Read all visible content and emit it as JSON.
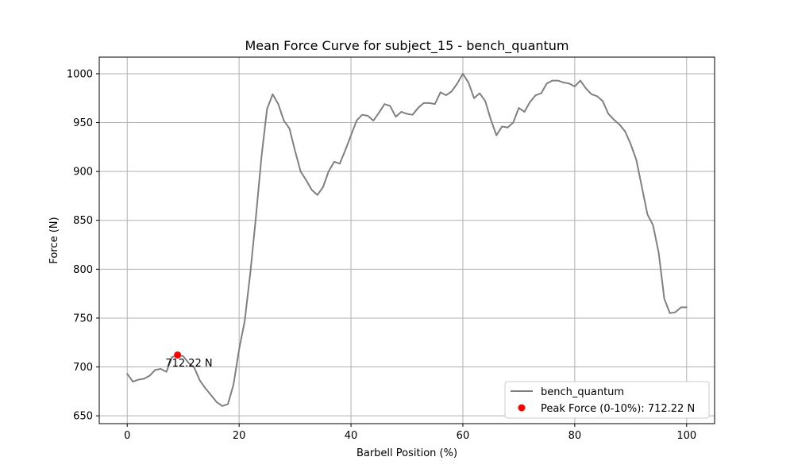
{
  "chart_data": {
    "type": "line",
    "title": "Mean Force Curve for subject_15 - bench_quantum",
    "xlabel": "Barbell Position (%)",
    "ylabel": "Force (N)",
    "xlim": [
      -5,
      105
    ],
    "ylim": [
      642,
      1017
    ],
    "xticks": [
      0,
      20,
      40,
      60,
      80,
      100
    ],
    "yticks": [
      650,
      700,
      750,
      800,
      850,
      900,
      950,
      1000
    ],
    "grid": true,
    "legend_position": "lower right",
    "series": [
      {
        "name": "bench_quantum",
        "color": "#808080",
        "x": [
          0,
          1,
          2,
          3,
          4,
          5,
          6,
          7,
          8,
          9,
          10,
          11,
          12,
          13,
          14,
          15,
          16,
          17,
          18,
          19,
          20,
          21,
          22,
          23,
          24,
          25,
          26,
          27,
          28,
          29,
          30,
          31,
          32,
          33,
          34,
          35,
          36,
          37,
          38,
          39,
          40,
          41,
          42,
          43,
          44,
          45,
          46,
          47,
          48,
          49,
          50,
          51,
          52,
          53,
          54,
          55,
          56,
          57,
          58,
          59,
          60,
          61,
          62,
          63,
          64,
          65,
          66,
          67,
          68,
          69,
          70,
          71,
          72,
          73,
          74,
          75,
          76,
          77,
          78,
          79,
          80,
          81,
          82,
          83,
          84,
          85,
          86,
          87,
          88,
          89,
          90,
          91,
          92,
          93,
          94,
          95,
          96,
          97,
          98,
          99,
          100
        ],
        "y": [
          693,
          685,
          687,
          688,
          691,
          697,
          698,
          695,
          710,
          712,
          711,
          704,
          699,
          686,
          678,
          671,
          664,
          660,
          662,
          682,
          718,
          747,
          796,
          853,
          915,
          964,
          979,
          969,
          952,
          944,
          921,
          900,
          891,
          881,
          876,
          884,
          900,
          910,
          908,
          922,
          937,
          952,
          958,
          957,
          952,
          960,
          969,
          967,
          956,
          961,
          959,
          958,
          965,
          970,
          970,
          969,
          981,
          978,
          982,
          990,
          1000,
          991,
          975,
          980,
          972,
          953,
          937,
          946,
          945,
          950,
          965,
          961,
          971,
          978,
          980,
          990,
          993,
          993,
          991,
          990,
          987,
          993,
          985,
          979,
          977,
          972,
          959,
          953,
          948,
          941,
          928,
          912,
          884,
          856,
          845,
          817,
          770,
          755,
          756,
          761,
          761
        ]
      }
    ],
    "peak": {
      "name": "Peak Force (0-10%): 712.22 N",
      "x": 9,
      "y": 712.22,
      "label": "712.22 N",
      "color": "#ff0000"
    }
  }
}
